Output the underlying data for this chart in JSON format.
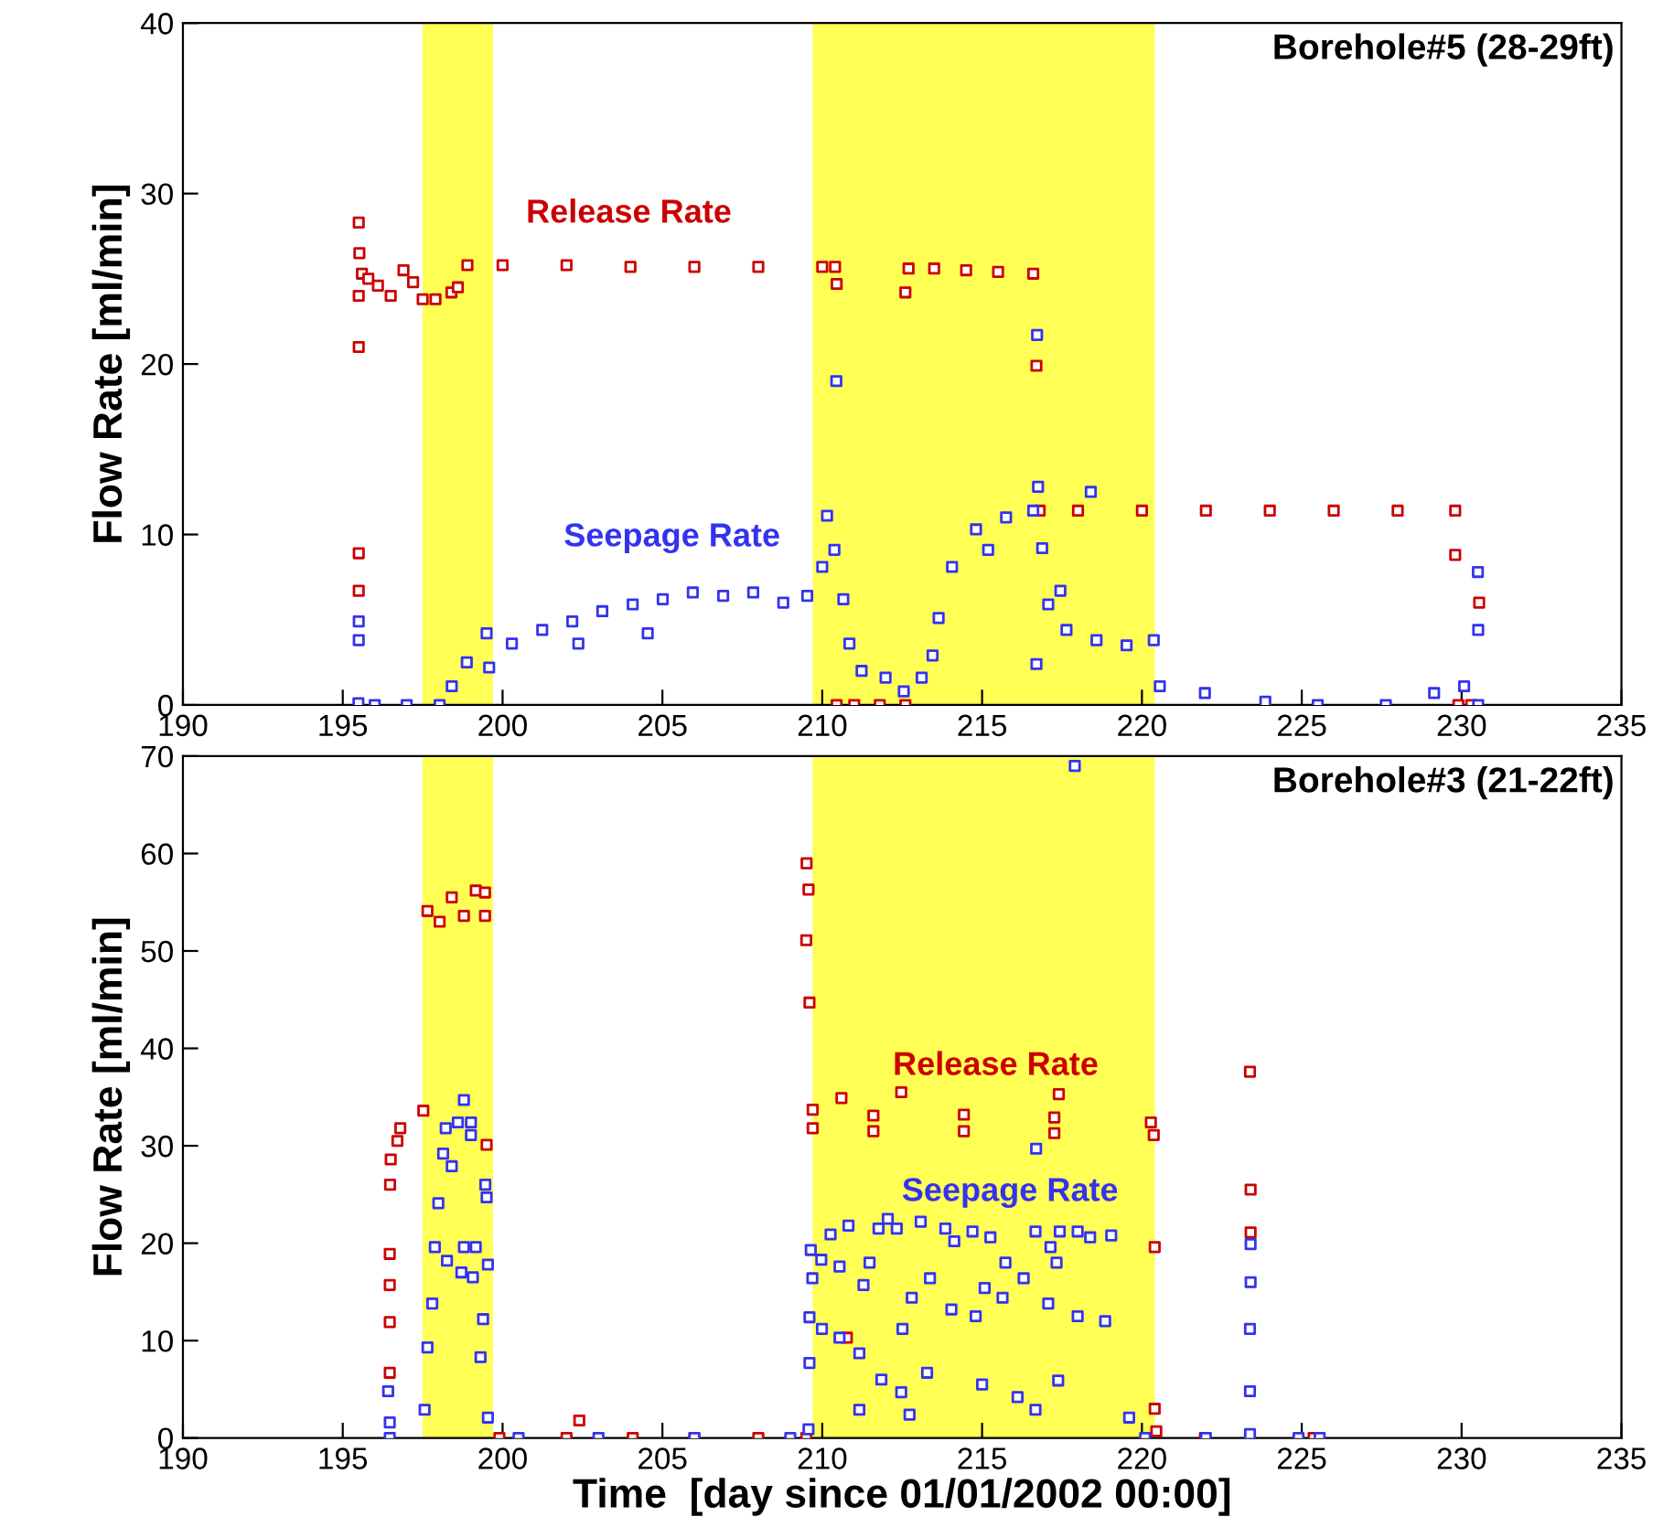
{
  "chart_data": [
    {
      "type": "scatter",
      "title": "Borehole#5 (28-29ft)",
      "ylabel": "Flow Rate [ml/min]",
      "marker": "square",
      "legend": false,
      "grid": false,
      "xlim": [
        190,
        235
      ],
      "xticks": [
        190,
        195,
        200,
        205,
        210,
        215,
        220,
        225,
        230,
        235
      ],
      "ylim": [
        0,
        40
      ],
      "yticks": [
        0,
        10,
        20,
        30,
        40
      ],
      "bands": [
        {
          "axis": "x",
          "from": 197.5,
          "to": 199.7,
          "color": "#ffff55"
        },
        {
          "axis": "x",
          "from": 209.7,
          "to": 220.4,
          "color": "#ffff55"
        }
      ],
      "series": [
        {
          "name": "Release Rate",
          "color": "#cc0000",
          "x": [
            195.5,
            195.5,
            195.5,
            195.52,
            195.5,
            195.5,
            195.6,
            195.8,
            196.1,
            196.5,
            196.9,
            197.2,
            197.5,
            197.9,
            198.4,
            198.6,
            198.9,
            200.0,
            202.0,
            204.0,
            206.0,
            208.0,
            210.0,
            210.4,
            210.45,
            210.45,
            211.0,
            211.8,
            212.6,
            212.6,
            212.7,
            213.5,
            214.5,
            215.5,
            216.6,
            216.7,
            216.8,
            218.0,
            220.0,
            222.0,
            224.0,
            226.0,
            228.0,
            229.8,
            229.8,
            229.9,
            230.3,
            230.55
          ],
          "values": [
            28.3,
            21.0,
            24.0,
            26.5,
            8.9,
            6.7,
            25.3,
            25.0,
            24.6,
            24.0,
            25.5,
            24.8,
            23.8,
            23.8,
            24.2,
            24.5,
            25.8,
            25.8,
            25.8,
            25.7,
            25.7,
            25.7,
            25.7,
            25.7,
            24.7,
            0,
            0,
            0,
            0,
            24.2,
            25.6,
            25.6,
            25.5,
            25.4,
            25.3,
            19.9,
            11.4,
            11.4,
            11.4,
            11.4,
            11.4,
            11.4,
            11.4,
            11.4,
            8.8,
            0,
            0,
            6.0
          ]
        },
        {
          "name": "Seepage Rate",
          "color": "#3333ee",
          "x": [
            195.49,
            195.5,
            195.5,
            196.0,
            197.0,
            198.03,
            198.41,
            198.88,
            199.5,
            199.58,
            200.29,
            201.24,
            202.18,
            202.37,
            203.12,
            204.07,
            204.54,
            205.01,
            205.95,
            206.9,
            207.84,
            208.78,
            209.53,
            210.0,
            210.15,
            210.38,
            210.44,
            210.66,
            210.85,
            211.23,
            211.98,
            212.55,
            213.11,
            213.45,
            213.64,
            214.06,
            214.81,
            215.19,
            215.75,
            216.6,
            216.7,
            216.72,
            216.75,
            216.88,
            217.07,
            217.45,
            217.64,
            218.4,
            218.58,
            219.52,
            220.37,
            220.56,
            221.97,
            223.86,
            225.5,
            227.63,
            229.14,
            230.08,
            230.51,
            230.52,
            230.52
          ],
          "values": [
            0.1,
            4.9,
            3.8,
            0,
            0,
            0,
            1.1,
            2.5,
            4.2,
            2.2,
            3.6,
            4.4,
            4.9,
            3.6,
            5.5,
            5.9,
            4.2,
            6.2,
            6.6,
            6.4,
            6.6,
            6.0,
            6.4,
            8.1,
            11.1,
            9.1,
            19.0,
            6.2,
            3.6,
            2.0,
            1.6,
            0.8,
            1.6,
            2.9,
            5.1,
            8.1,
            10.3,
            9.1,
            11.0,
            11.4,
            2.4,
            21.7,
            12.8,
            9.2,
            5.9,
            6.7,
            4.4,
            12.5,
            3.8,
            3.5,
            3.8,
            1.1,
            0.7,
            0.2,
            0,
            0,
            0.7,
            1.1,
            7.8,
            4.4,
            0
          ]
        }
      ]
    },
    {
      "type": "scatter",
      "title": "Borehole#3 (21-22ft)",
      "xlabel": "Time  [day since 01/01/2002 00:00]",
      "ylabel": "Flow Rate [ml/min]",
      "marker": "square",
      "legend": false,
      "grid": false,
      "xlim": [
        190,
        235
      ],
      "xticks": [
        190,
        195,
        200,
        205,
        210,
        215,
        220,
        225,
        230,
        235
      ],
      "ylim": [
        0,
        70
      ],
      "yticks": [
        0,
        10,
        20,
        30,
        40,
        50,
        60,
        70
      ],
      "bands": [
        {
          "axis": "x",
          "from": 197.5,
          "to": 199.7,
          "color": "#ffff55"
        },
        {
          "axis": "x",
          "from": 209.7,
          "to": 220.4,
          "color": "#ffff55"
        }
      ],
      "series": [
        {
          "name": "Release Rate",
          "color": "#cc0000",
          "x": [
            196.47,
            196.47,
            196.47,
            196.47,
            196.48,
            196.5,
            196.71,
            196.8,
            197.52,
            197.65,
            198.03,
            198.41,
            198.79,
            199.16,
            199.45,
            199.45,
            199.5,
            199.9,
            202.0,
            202.4,
            204.07,
            206.0,
            208.0,
            209.5,
            209.51,
            209.57,
            209.5,
            209.6,
            209.7,
            209.7,
            210.6,
            210.77,
            211.6,
            211.6,
            212.47,
            214.43,
            214.43,
            217.26,
            217.26,
            217.4,
            220.28,
            220.37,
            220.4,
            220.4,
            220.45,
            221.97,
            223.38,
            223.38,
            223.4,
            223.4,
            225.37
          ],
          "values": [
            18.9,
            15.7,
            11.9,
            6.7,
            26.0,
            28.6,
            30.5,
            31.8,
            33.6,
            54.1,
            53.0,
            55.5,
            53.6,
            56.2,
            56.0,
            53.6,
            30.1,
            0,
            0,
            1.8,
            0,
            0,
            0,
            0,
            59.0,
            56.3,
            51.1,
            44.7,
            33.7,
            31.8,
            34.9,
            10.3,
            33.1,
            31.5,
            35.5,
            33.2,
            31.5,
            32.9,
            31.3,
            35.3,
            32.4,
            31.1,
            19.6,
            3.0,
            0.7,
            0,
            0,
            37.6,
            25.5,
            21.1,
            0
          ]
        },
        {
          "name": "Seepage Rate",
          "color": "#3333ee",
          "x": [
            196.42,
            196.47,
            196.47,
            197.56,
            197.65,
            197.8,
            197.88,
            197.99,
            198.14,
            198.22,
            198.26,
            198.41,
            198.6,
            198.71,
            198.79,
            198.79,
            199.01,
            199.01,
            199.07,
            199.16,
            199.31,
            199.39,
            199.46,
            199.5,
            199.54,
            199.54,
            200.5,
            203.0,
            206.0,
            209.0,
            209.57,
            209.6,
            209.6,
            209.64,
            209.69,
            209.97,
            209.99,
            210.26,
            210.54,
            210.54,
            210.82,
            211.16,
            211.16,
            211.29,
            211.48,
            211.76,
            211.85,
            212.05,
            212.33,
            212.47,
            212.51,
            212.73,
            212.8,
            213.08,
            213.28,
            213.37,
            213.85,
            214.04,
            214.13,
            214.7,
            214.8,
            215.0,
            215.08,
            215.26,
            215.64,
            215.73,
            216.11,
            216.3,
            216.67,
            216.67,
            216.69,
            217.07,
            217.14,
            217.33,
            217.38,
            217.43,
            217.9,
            217.99,
            217.99,
            218.38,
            218.85,
            219.04,
            219.6,
            220.1,
            222.0,
            223.38,
            223.38,
            223.38,
            223.4,
            223.4,
            224.9,
            225.56
          ],
          "values": [
            4.8,
            1.6,
            0,
            2.9,
            9.3,
            13.8,
            19.6,
            24.1,
            29.2,
            31.8,
            18.2,
            27.9,
            32.4,
            17.0,
            34.7,
            19.6,
            32.4,
            31.1,
            16.5,
            19.6,
            8.3,
            12.2,
            26.0,
            24.7,
            17.8,
            2.1,
            0,
            0,
            0,
            0,
            0.9,
            7.7,
            12.4,
            19.3,
            16.4,
            18.3,
            11.2,
            20.9,
            17.6,
            10.3,
            21.8,
            2.9,
            8.7,
            15.7,
            18.0,
            21.5,
            6.0,
            22.5,
            21.5,
            4.7,
            11.2,
            2.4,
            14.4,
            22.2,
            6.7,
            16.4,
            21.5,
            13.2,
            20.2,
            21.2,
            12.5,
            5.5,
            15.4,
            20.6,
            14.4,
            18.0,
            4.2,
            16.4,
            2.9,
            21.2,
            29.7,
            13.8,
            19.6,
            18.0,
            5.9,
            21.2,
            69.0,
            21.2,
            12.5,
            20.6,
            12.0,
            20.8,
            2.1,
            0,
            0,
            0.4,
            4.8,
            11.2,
            16.0,
            19.9,
            0,
            0
          ]
        }
      ]
    }
  ]
}
